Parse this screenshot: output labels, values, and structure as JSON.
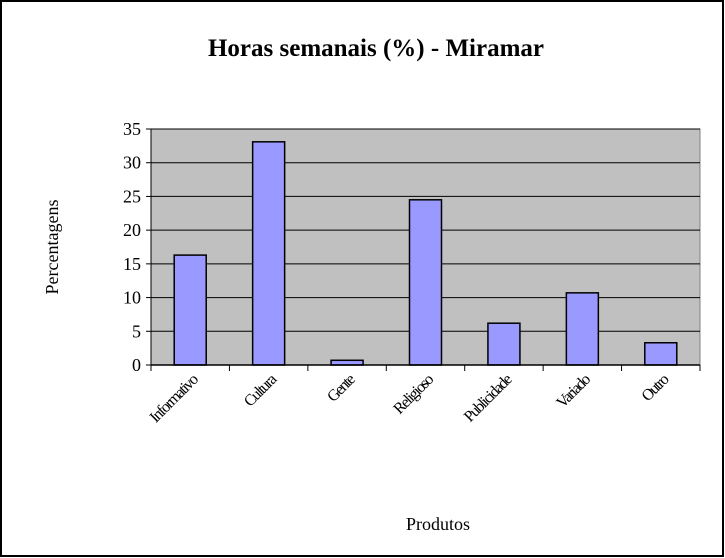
{
  "chart_data": {
    "type": "bar",
    "title": "Horas semanais (%) - Miramar",
    "x_label": "Produtos",
    "y_label": "Percentagens",
    "categories": [
      "Informativo",
      "Cultura",
      "Gente",
      "Religioso",
      "Publicidade",
      "Variado",
      "Outro"
    ],
    "values": [
      16.3,
      33.1,
      0.7,
      24.5,
      6.2,
      10.7,
      3.3
    ],
    "color": "#9999ff",
    "plot_background": "#c0c0c0",
    "ylim": [
      0,
      35
    ],
    "yticks": [
      0,
      5,
      10,
      15,
      20,
      25,
      30,
      35
    ],
    "grid": true
  }
}
